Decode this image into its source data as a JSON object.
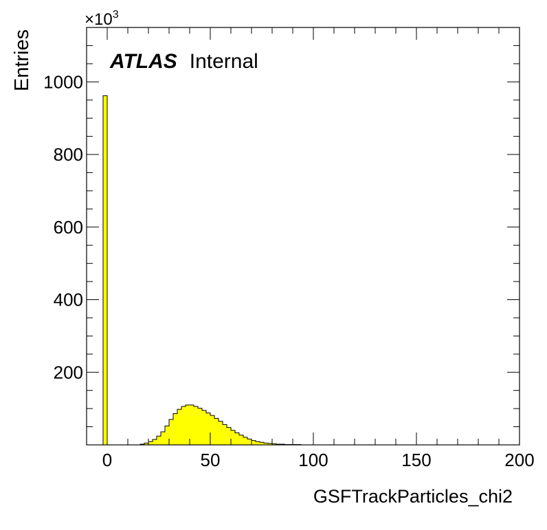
{
  "chart_data": {
    "type": "bar",
    "title": "",
    "xlabel": "GSFTrackParticles_chi2",
    "ylabel": "Entries",
    "y_multiplier": "×10",
    "y_multiplier_exp": "3",
    "label_bold": "ATLAS",
    "label_normal": "Internal",
    "xlim": [
      -10,
      200
    ],
    "ylim": [
      0,
      1150
    ],
    "x_ticks": [
      0,
      50,
      100,
      150,
      200
    ],
    "y_ticks": [
      200,
      400,
      600,
      800,
      1000
    ],
    "bin_width": 2,
    "x": [
      -2,
      0,
      2,
      4,
      6,
      8,
      10,
      12,
      14,
      16,
      18,
      20,
      22,
      24,
      26,
      28,
      30,
      32,
      34,
      36,
      38,
      40,
      42,
      44,
      46,
      48,
      50,
      52,
      54,
      56,
      58,
      60,
      62,
      64,
      66,
      68,
      70,
      72,
      74,
      76,
      78,
      80,
      82,
      84,
      86,
      88,
      90,
      92
    ],
    "values": [
      962,
      0,
      0,
      0,
      0,
      0,
      0,
      0,
      0,
      2,
      5,
      9,
      15,
      24,
      36,
      52,
      70,
      86,
      98,
      106,
      110,
      110,
      106,
      101,
      95,
      88,
      81,
      73,
      65,
      56,
      48,
      40,
      33,
      27,
      21,
      16,
      12,
      9,
      7,
      5,
      4,
      3,
      2,
      2,
      1,
      1,
      1,
      1
    ],
    "fill_color": "#ffff00",
    "line_color": "#000000"
  }
}
